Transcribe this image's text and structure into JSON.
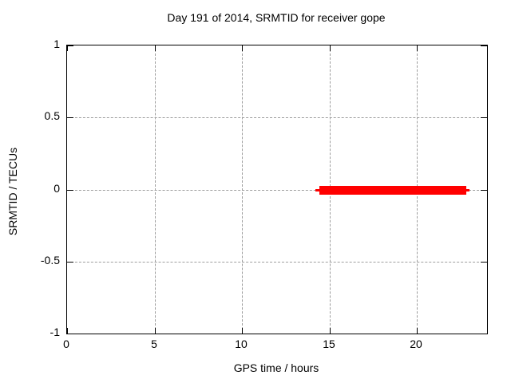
{
  "chart_data": {
    "type": "line",
    "title": "Day 191 of 2014, SRMTID for receiver gope",
    "xlabel": "GPS time / hours",
    "ylabel": "SRMTID / TECUs",
    "xlim": [
      0,
      24
    ],
    "ylim": [
      -1,
      1
    ],
    "grid": true,
    "legend": "none",
    "xticks": [
      {
        "value": 0,
        "label": "0"
      },
      {
        "value": 5,
        "label": "5"
      },
      {
        "value": 10,
        "label": "10"
      },
      {
        "value": 15,
        "label": "15"
      },
      {
        "value": 20,
        "label": "20"
      }
    ],
    "yticks": [
      {
        "value": 1,
        "label": "1"
      },
      {
        "value": 0.5,
        "label": "0.5"
      },
      {
        "value": 0,
        "label": "0"
      },
      {
        "value": -0.5,
        "label": "-0.5"
      },
      {
        "value": -1,
        "label": "-1"
      }
    ],
    "series": [
      {
        "name": "SRMTID",
        "color": "#ff0000",
        "description": "flat segment at SRMTID ~ 0 TECUs from about 14.2 to 23.0 GPS hours",
        "segments": [
          {
            "x1": 14.2,
            "x2": 23.0,
            "y": 0,
            "thickness_px": 3
          },
          {
            "x1": 14.4,
            "x2": 22.8,
            "y": 0,
            "thickness_px": 11
          }
        ]
      }
    ],
    "colors": {
      "background": "#ffffff",
      "border": "#000000",
      "grid": "#9e9e9e",
      "text": "#000000",
      "series": "#ff0000"
    }
  }
}
